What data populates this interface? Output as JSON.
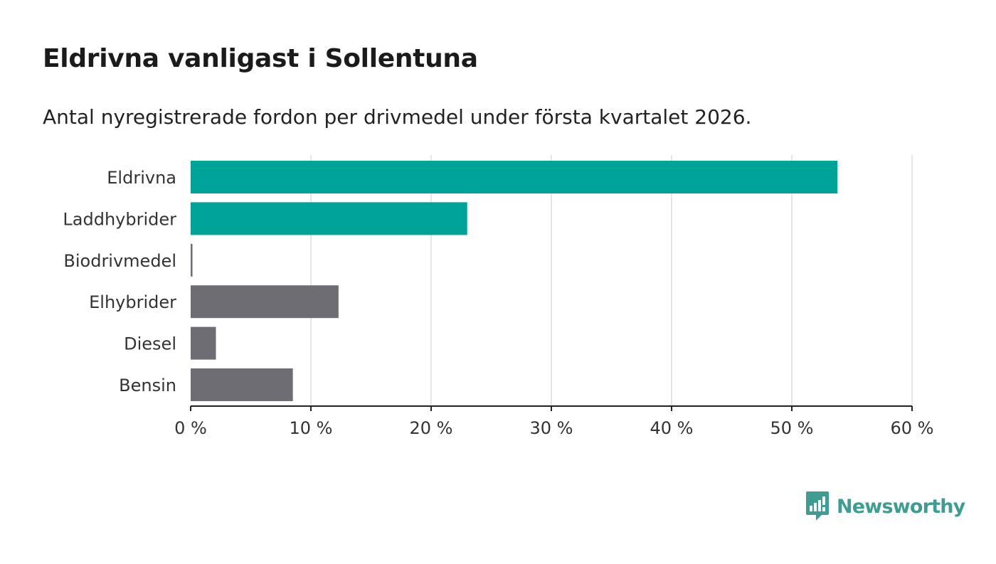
{
  "header": {
    "title": "Eldrivna vanligast i Sollentuna",
    "subtitle": "Antal nyregistrerade fordon per drivmedel under första kvartalet 2026."
  },
  "chart_data": {
    "type": "bar",
    "orientation": "horizontal",
    "categories": [
      "Eldrivna",
      "Laddhybrider",
      "Biodrivmedel",
      "Elhybrider",
      "Diesel",
      "Bensin"
    ],
    "values": [
      53.8,
      23.0,
      0.15,
      12.3,
      2.1,
      8.5
    ],
    "colors": [
      "#00a398",
      "#00a398",
      "#6e6d73",
      "#6e6d73",
      "#6e6d73",
      "#6e6d73"
    ],
    "xlim": [
      0,
      60
    ],
    "xticks": [
      0,
      10,
      20,
      30,
      40,
      50,
      60
    ],
    "tick_labels": [
      "0 %",
      "10 %",
      "20 %",
      "30 %",
      "40 %",
      "50 %",
      "60 %"
    ],
    "grid": true
  },
  "brand": {
    "name": "Newsworthy",
    "icon": "newsworthy-logo-icon",
    "color": "#3e9d93"
  }
}
